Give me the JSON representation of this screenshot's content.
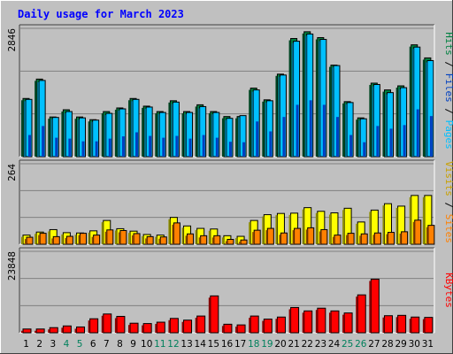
{
  "colors": {
    "background": "#c0c0c0",
    "panel": "#c0c0c0",
    "grid": "#808080",
    "title": "#0000ff",
    "hits": "#008040",
    "files": "#00c0ff",
    "pages": "#0040c0",
    "visits": "#ffff00",
    "sites": "#ff8000",
    "kbytes": "#ff0000",
    "weekend": "#00805c",
    "tick": "#000000"
  },
  "chart_data": [
    {
      "type": "bar",
      "title": "Daily usage for March 2023",
      "panel": "hits-files-pages",
      "y_max_label": "2846",
      "ylim": [
        0,
        2846
      ],
      "legend": [
        "Pages",
        "Files",
        "Hits"
      ],
      "categories": [
        "1",
        "2",
        "3",
        "4",
        "5",
        "6",
        "7",
        "8",
        "9",
        "10",
        "11",
        "12",
        "13",
        "14",
        "15",
        "16",
        "17",
        "18",
        "19",
        "20",
        "21",
        "22",
        "23",
        "24",
        "25",
        "26",
        "27",
        "28",
        "29",
        "30",
        "31"
      ],
      "weekend_days": [
        4,
        5,
        11,
        12,
        18,
        19,
        25,
        26
      ],
      "series": [
        {
          "name": "Hits",
          "values": [
            1290,
            1720,
            880,
            1040,
            880,
            820,
            1000,
            1080,
            1290,
            1120,
            1000,
            1240,
            1000,
            1150,
            1000,
            890,
            890,
            1520,
            1260,
            1830,
            2620,
            2770,
            2640,
            2030,
            1220,
            860,
            1630,
            1480,
            1570,
            2480,
            2190
          ]
        },
        {
          "name": "Files",
          "values": [
            1270,
            1690,
            870,
            1000,
            860,
            810,
            960,
            1060,
            1270,
            1100,
            980,
            1210,
            980,
            1110,
            980,
            850,
            910,
            1480,
            1240,
            1810,
            2560,
            2720,
            2600,
            2020,
            1200,
            840,
            1600,
            1420,
            1530,
            2430,
            2130
          ]
        },
        {
          "name": "Pages",
          "values": [
            480,
            680,
            420,
            400,
            340,
            340,
            400,
            450,
            540,
            460,
            420,
            460,
            400,
            480,
            420,
            330,
            320,
            780,
            560,
            880,
            1150,
            1250,
            1150,
            880,
            480,
            320,
            680,
            620,
            700,
            1050,
            900
          ]
        }
      ]
    },
    {
      "type": "bar",
      "panel": "visits-sites",
      "y_max_label": "264",
      "ylim": [
        0,
        264
      ],
      "legend": [
        "Sites",
        "Visits"
      ],
      "categories": [
        "1",
        "2",
        "3",
        "4",
        "5",
        "6",
        "7",
        "8",
        "9",
        "10",
        "11",
        "12",
        "13",
        "14",
        "15",
        "16",
        "17",
        "18",
        "19",
        "20",
        "21",
        "22",
        "23",
        "24",
        "25",
        "26",
        "27",
        "28",
        "29",
        "30",
        "31"
      ],
      "series": [
        {
          "name": "Visits",
          "values": [
            30,
            40,
            48,
            38,
            37,
            44,
            78,
            51,
            43,
            32,
            30,
            88,
            60,
            52,
            50,
            28,
            26,
            78,
            97,
            101,
            102,
            120,
            108,
            103,
            118,
            73,
            112,
            133,
            125,
            160,
            160
          ]
        },
        {
          "name": "Sites",
          "values": [
            23,
            36,
            25,
            26,
            36,
            30,
            47,
            45,
            35,
            25,
            24,
            70,
            34,
            28,
            28,
            16,
            14,
            46,
            52,
            37,
            52,
            54,
            48,
            30,
            36,
            34,
            37,
            39,
            41,
            79,
            62
          ]
        }
      ]
    },
    {
      "type": "bar",
      "panel": "kbytes",
      "y_max_label": "23848",
      "ylim": [
        0,
        23848
      ],
      "legend": [
        "KBytes"
      ],
      "categories": [
        "1",
        "2",
        "3",
        "4",
        "5",
        "6",
        "7",
        "8",
        "9",
        "10",
        "11",
        "12",
        "13",
        "14",
        "15",
        "16",
        "17",
        "18",
        "19",
        "20",
        "21",
        "22",
        "23",
        "24",
        "25",
        "26",
        "27",
        "28",
        "29",
        "30",
        "31"
      ],
      "series": [
        {
          "name": "KBytes",
          "values": [
            1100,
            1100,
            1500,
            2000,
            1700,
            4100,
            5500,
            4800,
            2800,
            2700,
            3100,
            4200,
            3700,
            4900,
            10800,
            2500,
            2300,
            4900,
            4000,
            4600,
            7400,
            6400,
            7200,
            6400,
            5800,
            11100,
            15700,
            5000,
            5100,
            4600,
            4500
          ]
        }
      ]
    }
  ]
}
